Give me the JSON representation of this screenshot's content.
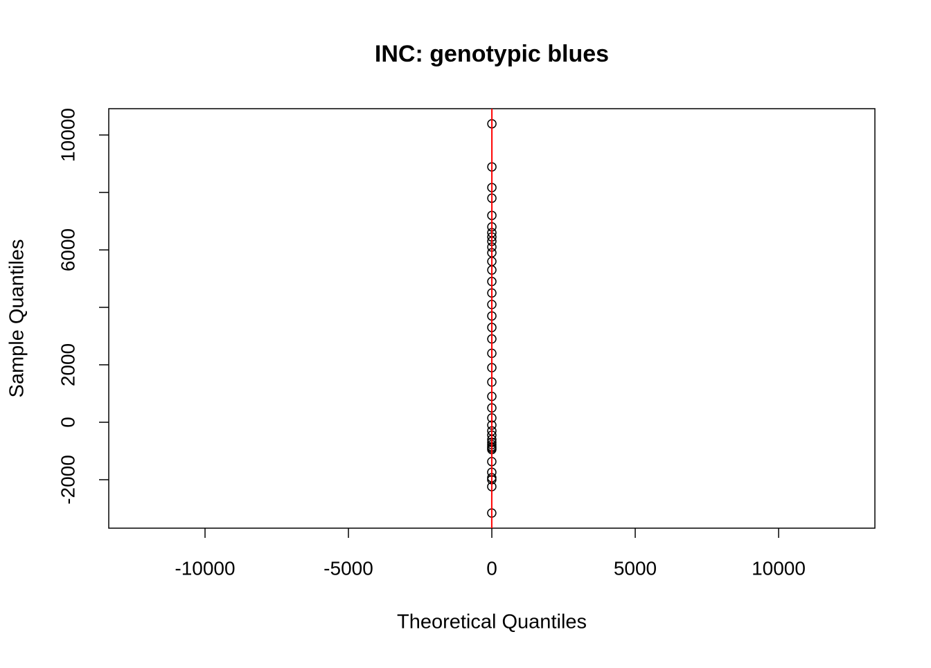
{
  "chart_data": {
    "type": "scatter",
    "title": "INC: genotypic blues",
    "x_label": "Theoretical Quantiles",
    "y_label": "Sample Quantiles",
    "color": "#000000",
    "x": [
      -2.24,
      -1.78,
      -1.53,
      -1.35,
      -1.2,
      -1.08,
      -0.97,
      -0.87,
      -0.78,
      -0.69,
      -0.61,
      -0.53,
      -0.46,
      -0.39,
      -0.32,
      -0.25,
      -0.19,
      -0.13,
      -0.09,
      -0.03,
      0.03,
      0.09,
      0.13,
      0.19,
      0.25,
      0.32,
      0.39,
      0.46,
      0.53,
      0.61,
      0.69,
      0.78,
      0.87,
      0.97,
      1.08,
      1.2,
      1.35,
      1.53,
      1.78,
      2.24
    ],
    "values": [
      -3160,
      -2240,
      -2000,
      -1930,
      -1740,
      -1370,
      -950,
      -900,
      -850,
      -780,
      -700,
      -600,
      -450,
      -300,
      -100,
      150,
      500,
      900,
      1400,
      1900,
      2400,
      2900,
      3300,
      3700,
      4100,
      4500,
      4900,
      5300,
      5600,
      5900,
      6100,
      6300,
      6450,
      6600,
      6800,
      7200,
      7800,
      8170,
      8890,
      10390
    ],
    "xlim": [
      -13357,
      13357
    ],
    "ylim": [
      -3687,
      10916
    ],
    "xticks": [
      -10000,
      -5000,
      0,
      5000,
      10000
    ],
    "yticks": [
      -2000,
      0,
      2000,
      6000,
      10000
    ],
    "yticks_unlabeled": [
      4000,
      8000
    ],
    "qqline": {
      "color": "#ff0000",
      "intercept": 2900,
      "slope": 3000
    }
  }
}
